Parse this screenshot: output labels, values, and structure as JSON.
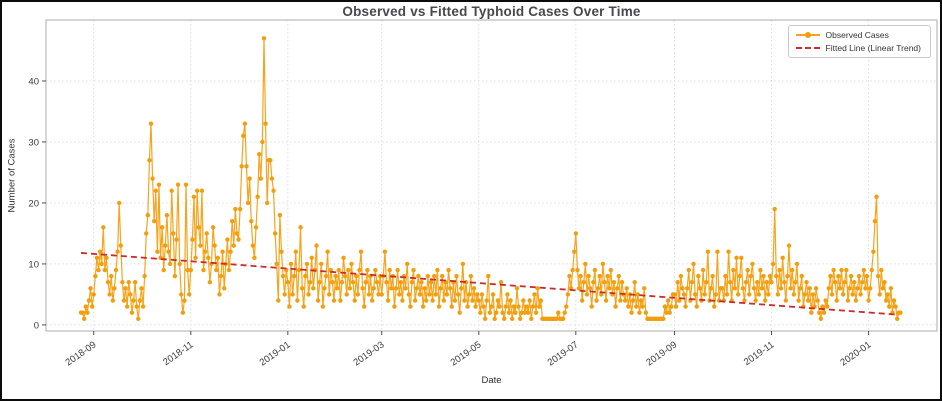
{
  "figure": {
    "title": "Observed vs Fitted Typhoid Cases Over Time",
    "xlabel": "Date",
    "ylabel": "Number of Cases",
    "legend": [
      {
        "label": "Observed Cases",
        "color": "#F6A41C",
        "style": "line-with-marker"
      },
      {
        "label": "Fitted Line (Linear Trend)",
        "color": "#CC2B2B",
        "style": "dashed"
      }
    ]
  },
  "colors": {
    "observed_line": "#F6A41C",
    "observed_marker": "#F29E0F",
    "fitted_line": "#CC2B2B",
    "grid": "#dcdcdc",
    "spine": "#aeaeae",
    "tick": "#4d4d4d",
    "tick_label": "#3c3c3c",
    "title": "#45494d",
    "background": "#ffffff",
    "frame": "#0b0b0b"
  },
  "chart_data": {
    "type": "line",
    "title": "Observed vs Fitted Typhoid Cases Over Time",
    "xlabel": "Date",
    "ylabel": "Number of Cases",
    "x_unit": "daily counts, day 0 = 2018-08-24",
    "start_date": "2018-08-24",
    "end_date": "2020-01-21",
    "grid": true,
    "legend_position": "upper right",
    "ylim": [
      -1,
      50
    ],
    "xlim_days": [
      -22,
      538
    ],
    "y_ticks": [
      0,
      10,
      20,
      30,
      40
    ],
    "x_ticks": [
      {
        "day": 8,
        "label": "2018-09"
      },
      {
        "day": 69,
        "label": "2018-11"
      },
      {
        "day": 130,
        "label": "2019-01"
      },
      {
        "day": 189,
        "label": "2019-03"
      },
      {
        "day": 250,
        "label": "2019-05"
      },
      {
        "day": 311,
        "label": "2019-07"
      },
      {
        "day": 373,
        "label": "2019-09"
      },
      {
        "day": 434,
        "label": "2019-11"
      },
      {
        "day": 495,
        "label": "2020-01"
      }
    ],
    "series": [
      {
        "name": "Observed Cases",
        "color": "#F6A41C",
        "marker_color": "#F29E0F",
        "style": "solid-with-markers",
        "values": [
          2,
          2,
          1,
          3,
          2,
          4,
          6,
          3,
          5,
          8,
          11,
          9,
          12,
          10,
          16,
          9,
          11,
          7,
          5,
          8,
          4,
          6,
          9,
          12,
          20,
          13,
          7,
          4,
          6,
          3,
          7,
          5,
          2,
          4,
          7,
          3,
          1,
          4,
          6,
          3,
          8,
          15,
          18,
          27,
          33,
          24,
          17,
          22,
          12,
          23,
          11,
          16,
          9,
          13,
          18,
          12,
          10,
          22,
          15,
          8,
          14,
          23,
          10,
          5,
          2,
          4,
          23,
          9,
          5,
          9,
          14,
          21,
          11,
          22,
          16,
          13,
          22,
          9,
          12,
          15,
          11,
          7,
          10,
          16,
          13,
          9,
          11,
          5,
          8,
          12,
          6,
          10,
          14,
          9,
          12,
          17,
          13,
          19,
          15,
          14,
          19,
          26,
          31,
          33,
          26,
          20,
          24,
          17,
          13,
          11,
          16,
          21,
          28,
          24,
          30,
          47,
          33,
          20,
          27,
          27,
          24,
          22,
          15,
          10,
          4,
          18,
          12,
          8,
          5,
          9,
          7,
          3,
          10,
          5,
          8,
          12,
          4,
          9,
          16,
          6,
          3,
          8,
          10,
          5,
          7,
          11,
          6,
          9,
          13,
          4,
          7,
          10,
          3,
          6,
          8,
          12,
          5,
          9,
          7,
          4,
          8,
          6,
          9,
          4,
          7,
          11,
          8,
          5,
          9,
          6,
          10,
          7,
          4,
          8,
          5,
          9,
          12,
          6,
          3,
          7,
          9,
          5,
          8,
          4,
          6,
          9,
          7,
          5,
          8,
          5,
          8,
          12,
          7,
          4,
          9,
          6,
          8,
          3,
          6,
          9,
          5,
          7,
          4,
          8,
          6,
          10,
          5,
          3,
          7,
          9,
          4,
          6,
          8,
          5,
          7,
          3,
          6,
          4,
          8,
          5,
          7,
          4,
          8,
          5,
          9,
          3,
          6,
          8,
          4,
          7,
          5,
          9,
          6,
          3,
          7,
          4,
          8,
          5,
          2,
          6,
          10,
          4,
          7,
          3,
          5,
          8,
          4,
          6,
          3,
          5,
          4,
          2,
          5,
          3,
          1,
          4,
          8,
          2,
          3,
          5,
          1,
          2,
          4,
          3,
          7,
          2,
          1,
          3,
          5,
          2,
          4,
          1,
          3,
          2,
          6,
          3,
          1,
          2,
          4,
          2,
          3,
          2,
          4,
          1,
          3,
          5,
          2,
          6,
          3,
          4,
          1,
          1,
          1,
          1,
          1,
          1,
          1,
          1,
          1,
          1,
          2,
          1,
          1,
          1,
          2,
          3,
          5,
          8,
          6,
          9,
          12,
          15,
          9,
          6,
          8,
          4,
          7,
          10,
          5,
          8,
          6,
          3,
          7,
          9,
          4,
          6,
          8,
          5,
          10,
          7,
          4,
          8,
          6,
          9,
          5,
          7,
          3,
          6,
          8,
          4,
          7,
          5,
          4,
          6,
          3,
          5,
          2,
          4,
          7,
          3,
          5,
          2,
          4,
          3,
          6,
          2,
          1,
          1,
          1,
          1,
          1,
          1,
          1,
          1,
          1,
          1,
          1,
          3,
          2,
          4,
          2,
          3,
          5,
          5,
          3,
          7,
          4,
          8,
          6,
          5,
          3,
          6,
          9,
          4,
          7,
          10,
          5,
          3,
          8,
          6,
          4,
          9,
          5,
          7,
          12,
          4,
          6,
          8,
          3,
          5,
          12,
          4,
          6,
          6,
          4,
          8,
          5,
          12,
          7,
          4,
          9,
          6,
          11,
          5,
          8,
          11,
          6,
          4,
          7,
          9,
          5,
          8,
          10,
          6,
          4,
          7,
          5,
          9,
          6,
          8,
          4,
          7,
          5,
          8,
          7,
          10,
          19,
          8,
          5,
          9,
          6,
          11,
          7,
          4,
          8,
          13,
          6,
          9,
          5,
          7,
          10,
          4,
          6,
          8,
          3,
          5,
          7,
          4,
          6,
          2,
          5,
          3,
          6,
          4,
          2,
          1,
          3,
          2,
          4,
          3,
          6,
          8,
          5,
          9,
          7,
          4,
          8,
          6,
          9,
          5,
          7,
          9,
          4,
          6,
          8,
          5,
          7,
          4,
          6,
          8,
          5,
          7,
          9,
          6,
          8,
          4,
          6,
          9,
          12,
          17,
          21,
          8,
          5,
          9,
          6,
          7,
          4,
          5,
          3,
          6,
          2,
          4,
          3,
          1,
          2,
          2
        ]
      },
      {
        "name": "Fitted Line (Linear Trend)",
        "color": "#CC2B2B",
        "style": "dashed",
        "trend": {
          "x0_day": 0,
          "value0": 11.8,
          "x1_day": 512,
          "value1": 1.7
        }
      }
    ]
  }
}
